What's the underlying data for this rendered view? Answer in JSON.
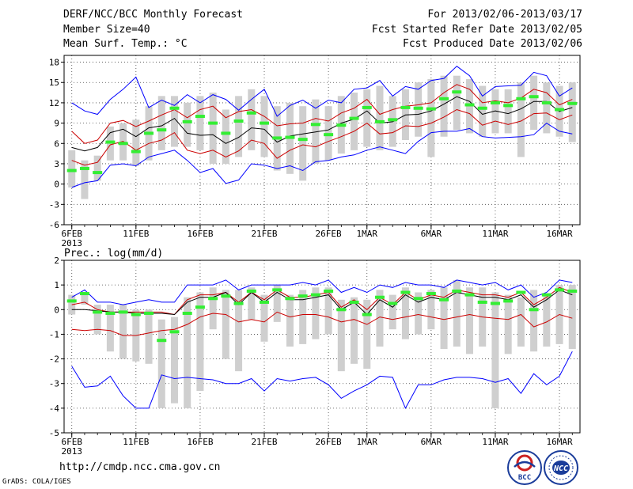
{
  "header": {
    "title": "DERF/NCC/BCC Monthly Forecast",
    "member_size": "Member Size=40",
    "variable": "Mean Surf. Temp.: °C",
    "period": "For 2013/02/06-2013/03/17",
    "refer_date": "Fcst Started Refer Date 2013/02/05",
    "produced_date": "Fcst Produced Date 2013/02/06"
  },
  "footer": {
    "url": "http://cmdp.ncc.cma.gov.cn",
    "credit": "GrADS: COLA/IGES",
    "logo_left": "BCC",
    "logo_right": "NCC"
  },
  "colors": {
    "envelope": "#0000ff",
    "spread": "#cc0000",
    "mean": "#000000",
    "median": "#33ee33",
    "box": "#cfcfcf",
    "grid": "#444444"
  },
  "chart_data": [
    {
      "type": "line",
      "id": "temperature",
      "title": "Mean Surf. Temp.: °C",
      "ylim": [
        -6,
        19
      ],
      "yticks": [
        -6,
        -3,
        0,
        3,
        6,
        9,
        12,
        15,
        18
      ],
      "x_tick_labels": [
        "6FEB",
        "11FEB",
        "16FEB",
        "21FEB",
        "26FEB",
        "1MAR",
        "6MAR",
        "11MAR",
        "16MAR"
      ],
      "x_tick_days": [
        0,
        5,
        10,
        15,
        20,
        23,
        28,
        33,
        38
      ],
      "x_year_label": "2013",
      "x_range": [
        -0.6,
        39.6
      ],
      "median_marks": [
        2.0,
        2.3,
        1.7,
        6.2,
        6.0,
        4.8,
        7.5,
        8.0,
        11.2,
        9.2,
        10.0,
        9.0,
        7.5,
        9.3,
        10.5,
        9.0,
        6.8,
        6.9,
        6.6,
        8.8,
        7.3,
        8.7,
        9.7,
        11.3,
        9.2,
        9.5,
        11.3,
        11.2,
        11.1,
        12.6,
        13.6,
        11.7,
        11.2,
        12.0,
        11.6,
        12.6,
        12.9,
        12.0,
        11.0,
        11.9
      ],
      "box_ranges": [
        [
          -0.5,
          5.0
        ],
        [
          -2.2,
          3.5
        ],
        [
          0.5,
          4.2
        ],
        [
          3.5,
          8.5
        ],
        [
          3.5,
          9.0
        ],
        [
          2.7,
          9.5
        ],
        [
          3.5,
          11.5
        ],
        [
          5.0,
          13.0
        ],
        [
          5.5,
          13.0
        ],
        [
          5.5,
          12.0
        ],
        [
          5.0,
          13.0
        ],
        [
          3.0,
          13.5
        ],
        [
          3.0,
          11.0
        ],
        [
          4.0,
          13.0
        ],
        [
          5.0,
          14.0
        ],
        [
          4.0,
          13.0
        ],
        [
          2.0,
          11.5
        ],
        [
          1.5,
          12.0
        ],
        [
          0.5,
          11.5
        ],
        [
          3.0,
          12.5
        ],
        [
          3.5,
          11.5
        ],
        [
          4.5,
          13.0
        ],
        [
          5.0,
          13.5
        ],
        [
          5.5,
          14.0
        ],
        [
          5.0,
          14.5
        ],
        [
          5.5,
          13.0
        ],
        [
          6.5,
          14.0
        ],
        [
          7.0,
          15.0
        ],
        [
          4.0,
          15.5
        ],
        [
          7.0,
          16.0
        ],
        [
          8.0,
          16.0
        ],
        [
          7.5,
          15.5
        ],
        [
          7.0,
          14.5
        ],
        [
          7.5,
          14.0
        ],
        [
          7.5,
          14.0
        ],
        [
          4.0,
          15.0
        ],
        [
          8.0,
          16.0
        ],
        [
          7.5,
          15.0
        ],
        [
          7.0,
          14.5
        ],
        [
          6.2,
          15.0
        ]
      ],
      "series": [
        {
          "name": "max",
          "color": "#0000ff",
          "values": [
            12.0,
            10.8,
            10.3,
            12.5,
            14.0,
            15.8,
            11.3,
            12.4,
            11.6,
            13.2,
            12.0,
            13.2,
            12.5,
            10.9,
            12.5,
            14.0,
            10.0,
            11.6,
            12.4,
            11.2,
            12.4,
            12.0,
            14.0,
            14.2,
            15.3,
            13.0,
            14.4,
            14.0,
            15.3,
            15.6,
            17.4,
            16.0,
            13.0,
            14.4,
            14.5,
            14.6,
            16.5,
            16.0,
            13.0,
            14.2
          ]
        },
        {
          "name": "upper",
          "color": "#cc0000",
          "values": [
            7.8,
            6.0,
            6.5,
            9.0,
            9.4,
            8.5,
            9.3,
            10.2,
            11.0,
            9.8,
            11.0,
            11.5,
            9.8,
            10.7,
            11.0,
            10.0,
            8.6,
            8.9,
            9.0,
            9.7,
            9.3,
            10.5,
            11.2,
            12.5,
            10.3,
            11.0,
            11.5,
            11.7,
            12.0,
            13.5,
            14.7,
            14.0,
            12.0,
            12.3,
            12.0,
            12.7,
            14.0,
            13.5,
            11.7,
            12.5
          ]
        },
        {
          "name": "mean",
          "color": "#000000",
          "values": [
            5.4,
            4.9,
            5.4,
            7.6,
            8.1,
            7.0,
            8.3,
            8.6,
            9.7,
            7.5,
            7.2,
            7.3,
            6.0,
            6.9,
            8.3,
            8.1,
            6.2,
            7.1,
            7.4,
            7.7,
            8.0,
            9.0,
            9.6,
            10.8,
            9.0,
            9.2,
            10.2,
            10.3,
            10.8,
            11.8,
            12.9,
            12.2,
            10.3,
            10.8,
            10.4,
            11.1,
            12.2,
            12.2,
            10.7,
            11.3
          ]
        },
        {
          "name": "lower",
          "color": "#cc0000",
          "values": [
            3.5,
            2.8,
            3.2,
            5.8,
            6.3,
            5.0,
            6.0,
            6.5,
            7.6,
            5.0,
            4.5,
            5.0,
            4.0,
            4.9,
            6.5,
            6.0,
            3.8,
            5.0,
            5.8,
            5.5,
            6.3,
            7.0,
            7.8,
            9.0,
            7.4,
            7.6,
            8.6,
            8.5,
            9.0,
            9.9,
            11.0,
            10.4,
            8.7,
            9.3,
            8.8,
            9.3,
            10.4,
            10.5,
            9.5,
            10.2
          ]
        },
        {
          "name": "min",
          "color": "#0000ff",
          "values": [
            -0.5,
            0.2,
            0.5,
            2.8,
            3.0,
            2.7,
            4.0,
            4.5,
            5.0,
            3.5,
            1.7,
            2.3,
            0.1,
            0.6,
            3.0,
            2.8,
            2.3,
            2.7,
            2.0,
            3.3,
            3.5,
            4.0,
            4.3,
            5.0,
            5.5,
            5.0,
            4.5,
            6.3,
            7.6,
            7.8,
            7.8,
            8.2,
            7.0,
            6.8,
            6.9,
            7.0,
            7.3,
            9.0,
            7.8,
            7.4
          ]
        }
      ]
    },
    {
      "type": "line",
      "id": "precipitation",
      "title": "Prec.: log(mm/d)",
      "ylim": [
        -5,
        2
      ],
      "yticks": [
        -5,
        -4,
        -3,
        -2,
        -1,
        0,
        1,
        2
      ],
      "x_tick_labels": [
        "6FEB",
        "11FEB",
        "16FEB",
        "21FEB",
        "26FEB",
        "1MAR",
        "6MAR",
        "11MAR",
        "16MAR"
      ],
      "x_tick_days": [
        0,
        5,
        10,
        15,
        20,
        23,
        28,
        33,
        38
      ],
      "x_year_label": "2013",
      "x_range": [
        -0.6,
        39.6
      ],
      "median_marks": [
        0.35,
        0.65,
        -0.1,
        -0.15,
        -0.1,
        -0.2,
        -0.15,
        -1.25,
        -0.9,
        -0.15,
        0.1,
        0.45,
        0.55,
        0.25,
        0.75,
        0.3,
        0.8,
        0.45,
        0.55,
        0.6,
        0.75,
        0.0,
        0.3,
        -0.2,
        0.5,
        0.25,
        0.7,
        0.45,
        0.65,
        0.4,
        0.75,
        0.6,
        0.3,
        0.25,
        0.35,
        0.7,
        0.0,
        0.6,
        0.8,
        0.75
      ],
      "box_ranges": [
        [
          -0.2,
          0.6
        ],
        [
          0.2,
          0.7
        ],
        [
          -1.0,
          0.2
        ],
        [
          -1.7,
          0.2
        ],
        [
          -2.0,
          0.2
        ],
        [
          -2.1,
          0.0
        ],
        [
          -2.2,
          0.0
        ],
        [
          -4.0,
          -0.4
        ],
        [
          -3.8,
          -0.3
        ],
        [
          -4.0,
          0.5
        ],
        [
          -3.3,
          0.7
        ],
        [
          -0.8,
          0.9
        ],
        [
          -2.0,
          0.8
        ],
        [
          -2.5,
          0.8
        ],
        [
          -0.4,
          0.9
        ],
        [
          -1.3,
          0.6
        ],
        [
          -0.5,
          1.0
        ],
        [
          -1.5,
          0.6
        ],
        [
          -1.4,
          0.8
        ],
        [
          -1.2,
          0.9
        ],
        [
          -1.0,
          0.9
        ],
        [
          -2.5,
          0.4
        ],
        [
          -2.2,
          0.5
        ],
        [
          -2.4,
          0.4
        ],
        [
          -1.5,
          0.8
        ],
        [
          -0.8,
          0.6
        ],
        [
          -1.2,
          0.9
        ],
        [
          -1.0,
          0.7
        ],
        [
          -0.8,
          0.8
        ],
        [
          -1.6,
          0.9
        ],
        [
          -1.5,
          1.2
        ],
        [
          -1.8,
          0.9
        ],
        [
          -1.5,
          0.9
        ],
        [
          -4.0,
          0.7
        ],
        [
          -1.8,
          0.6
        ],
        [
          -1.5,
          0.5
        ],
        [
          -1.7,
          0.8
        ],
        [
          -1.5,
          0.6
        ],
        [
          -1.4,
          1.0
        ],
        [
          -1.6,
          1.0
        ]
      ],
      "series": [
        {
          "name": "max",
          "color": "#0000ff",
          "values": [
            0.5,
            0.8,
            0.3,
            0.3,
            0.2,
            0.3,
            0.4,
            0.3,
            0.3,
            1.0,
            1.0,
            1.0,
            1.2,
            0.8,
            1.0,
            1.0,
            1.0,
            1.0,
            1.1,
            1.0,
            1.2,
            0.7,
            0.9,
            0.7,
            1.0,
            0.9,
            1.1,
            1.0,
            1.0,
            0.9,
            1.2,
            1.1,
            1.0,
            1.1,
            0.8,
            1.0,
            0.5,
            0.7,
            1.2,
            1.1
          ]
        },
        {
          "name": "upper",
          "color": "#cc0000",
          "values": [
            0.2,
            0.3,
            0.0,
            -0.1,
            -0.1,
            -0.1,
            -0.1,
            -0.1,
            -0.2,
            0.4,
            0.6,
            0.6,
            0.7,
            0.3,
            0.7,
            0.4,
            0.8,
            0.5,
            0.5,
            0.6,
            0.7,
            0.1,
            0.4,
            0.0,
            0.5,
            0.2,
            0.7,
            0.4,
            0.6,
            0.5,
            0.8,
            0.7,
            0.6,
            0.6,
            0.5,
            0.7,
            0.2,
            0.5,
            0.9,
            0.7
          ]
        },
        {
          "name": "mean",
          "color": "#000000",
          "values": [
            0.0,
            0.0,
            -0.05,
            -0.1,
            -0.1,
            -0.15,
            -0.15,
            -0.15,
            -0.2,
            0.3,
            0.5,
            0.5,
            0.7,
            0.2,
            0.7,
            0.3,
            0.7,
            0.4,
            0.4,
            0.5,
            0.6,
            0.0,
            0.3,
            -0.2,
            0.4,
            0.1,
            0.6,
            0.3,
            0.5,
            0.4,
            0.7,
            0.6,
            0.5,
            0.5,
            0.4,
            0.6,
            0.1,
            0.4,
            0.8,
            0.6
          ]
        },
        {
          "name": "lower",
          "color": "#cc0000",
          "values": [
            -0.8,
            -0.85,
            -0.8,
            -0.85,
            -1.05,
            -1.05,
            -0.95,
            -0.85,
            -0.8,
            -0.6,
            -0.3,
            -0.15,
            -0.2,
            -0.5,
            -0.4,
            -0.5,
            -0.1,
            -0.3,
            -0.2,
            -0.2,
            -0.3,
            -0.5,
            -0.4,
            -0.6,
            -0.3,
            -0.4,
            -0.3,
            -0.2,
            -0.3,
            -0.4,
            -0.3,
            -0.2,
            -0.3,
            -0.35,
            -0.4,
            -0.2,
            -0.7,
            -0.5,
            -0.2,
            -0.35
          ]
        },
        {
          "name": "min",
          "color": "#0000ff",
          "values": [
            -2.3,
            -3.15,
            -3.1,
            -2.7,
            -3.5,
            -4.0,
            -4.0,
            -2.65,
            -2.8,
            -2.75,
            -2.8,
            -2.85,
            -3.0,
            -3.0,
            -2.8,
            -3.3,
            -2.8,
            -2.9,
            -2.8,
            -2.75,
            -3.05,
            -3.6,
            -3.3,
            -3.05,
            -2.7,
            -2.75,
            -4.0,
            -3.05,
            -3.05,
            -2.85,
            -2.75,
            -2.75,
            -2.8,
            -2.95,
            -2.8,
            -3.4,
            -2.6,
            -3.05,
            -2.7,
            -1.7
          ]
        }
      ]
    }
  ]
}
